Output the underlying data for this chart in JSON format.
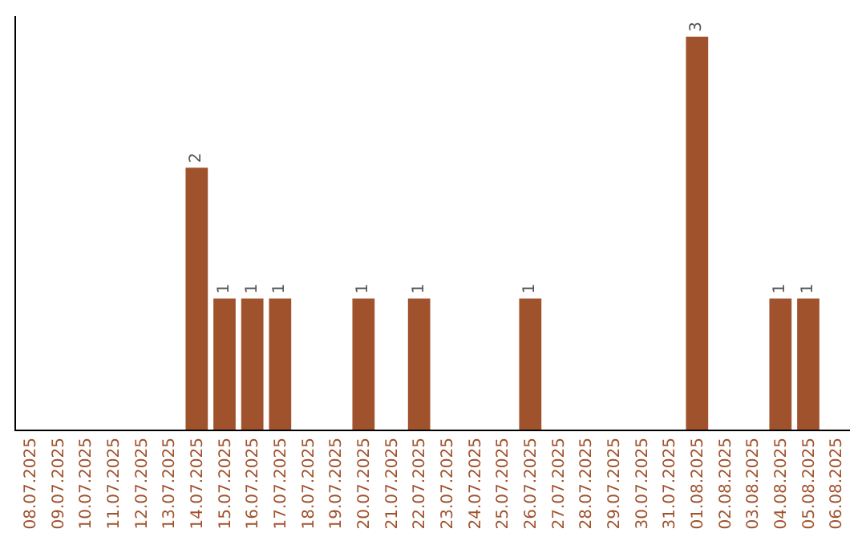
{
  "chart_data": {
    "type": "bar",
    "categories": [
      "08.07.2025",
      "09.07.2025",
      "10.07.2025",
      "11.07.2025",
      "12.07.2025",
      "13.07.2025",
      "14.07.2025",
      "15.07.2025",
      "16.07.2025",
      "17.07.2025",
      "18.07.2025",
      "19.07.2025",
      "20.07.2025",
      "21.07.2025",
      "22.07.2025",
      "23.07.2025",
      "24.07.2025",
      "25.07.2025",
      "26.07.2025",
      "27.07.2025",
      "28.07.2025",
      "29.07.2025",
      "30.07.2025",
      "31.07.2025",
      "01.08.2025",
      "02.08.2025",
      "03.08.2025",
      "04.08.2025",
      "05.08.2025",
      "06.08.2025"
    ],
    "values": [
      0,
      0,
      0,
      0,
      0,
      0,
      2,
      1,
      1,
      1,
      0,
      0,
      1,
      0,
      1,
      0,
      0,
      0,
      1,
      0,
      0,
      0,
      0,
      0,
      3,
      0,
      0,
      1,
      1,
      0
    ],
    "value_labels": [
      null,
      null,
      null,
      null,
      null,
      null,
      "2",
      "1",
      "1",
      "1",
      null,
      null,
      "1",
      null,
      "1",
      null,
      null,
      null,
      "1",
      null,
      null,
      null,
      null,
      null,
      "3",
      null,
      null,
      "1",
      "1",
      null
    ],
    "color": "#a0522d",
    "tick_labels": "x"
  }
}
